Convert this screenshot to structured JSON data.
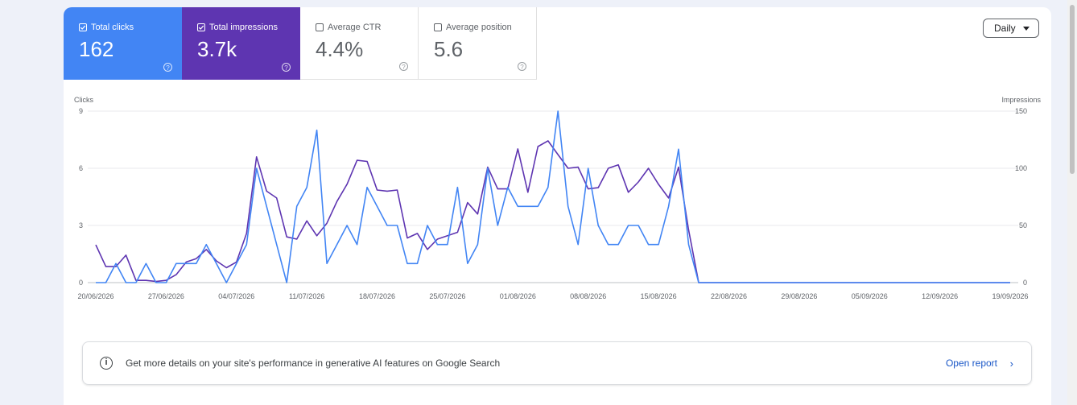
{
  "metrics": [
    {
      "label": "Total clicks",
      "value": "162",
      "checked": true,
      "color": "#4285f4"
    },
    {
      "label": "Total impressions",
      "value": "3.7k",
      "checked": true,
      "color": "#5e35b1"
    },
    {
      "label": "Average CTR",
      "value": "4.4%",
      "checked": false,
      "color": "#ffffff"
    },
    {
      "label": "Average position",
      "value": "5.6",
      "checked": false,
      "color": "#ffffff"
    }
  ],
  "help_glyph": "?",
  "granularity": {
    "selected": "Daily"
  },
  "chart_data": {
    "type": "line",
    "left_axis": {
      "label": "Clicks",
      "ticks": [
        "9",
        "6",
        "3",
        "0"
      ],
      "range": [
        0,
        9
      ]
    },
    "right_axis": {
      "label": "Impressions",
      "ticks": [
        "150",
        "100",
        "50",
        "0"
      ],
      "range": [
        0,
        150
      ]
    },
    "x_tick_labels": [
      "20/06/2026",
      "27/06/2026",
      "04/07/2026",
      "11/07/2026",
      "18/07/2026",
      "25/07/2026",
      "01/08/2026",
      "08/08/2026",
      "15/08/2026",
      "22/08/2026",
      "29/08/2026",
      "05/09/2026",
      "12/09/2026",
      "19/09/2026"
    ],
    "x_start": "2026-06-20",
    "x_end": "2026-09-19",
    "grid": true,
    "series": [
      {
        "name": "Clicks",
        "axis": "left",
        "color": "#4285f4",
        "values": [
          0,
          0,
          1,
          0,
          0,
          1,
          0,
          0,
          1,
          1,
          1,
          2,
          1,
          0,
          1,
          2,
          6,
          4,
          2,
          0,
          4,
          5,
          8,
          1,
          2,
          3,
          2,
          5,
          4,
          3,
          3,
          1,
          1,
          3,
          2,
          2,
          5,
          1,
          2,
          6,
          3,
          5,
          4,
          4,
          4,
          5,
          9,
          4,
          2,
          6,
          3,
          2,
          2,
          3,
          3,
          2,
          2,
          4,
          7,
          2,
          0
        ]
      },
      {
        "name": "Impressions",
        "axis": "right",
        "color": "#5e35b1",
        "values": [
          33,
          14,
          14,
          24,
          2,
          2,
          1,
          2,
          7,
          18,
          21,
          29,
          19,
          13,
          18,
          43,
          110,
          80,
          74,
          40,
          38,
          54,
          41,
          52,
          71,
          86,
          107,
          106,
          81,
          80,
          81,
          39,
          43,
          29,
          38,
          41,
          44,
          70,
          60,
          101,
          82,
          82,
          117,
          79,
          119,
          124,
          112,
          100,
          101,
          82,
          83,
          100,
          103,
          79,
          88,
          100,
          86,
          74,
          101,
          46,
          0
        ]
      }
    ]
  },
  "banner": {
    "info_glyph": "i",
    "message": "Get more details on your site's performance in generative AI features on Google Search",
    "link_label": "Open report",
    "chevron": "›"
  }
}
